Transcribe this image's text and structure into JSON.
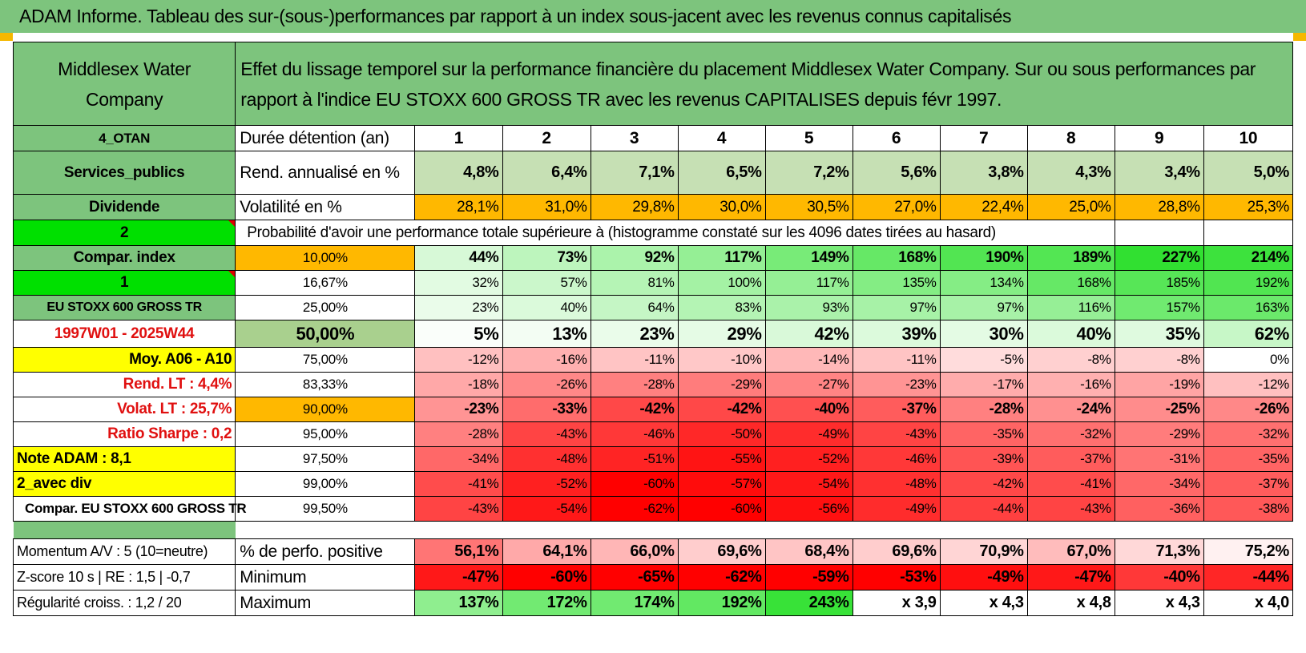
{
  "title": "ADAM Informe. Tableau des sur-(sous-)performances par rapport à un index sous-jacent avec les revenus connus capitalisés",
  "header": {
    "company": "Middlesex Water Company",
    "description": "Effet du lissage temporel sur la performance financière du placement Middlesex Water Company. Sur ou sous performances par rapport à l'indice EU STOXX 600 GROSS TR avec les revenus CAPITALISES depuis févr 1997."
  },
  "colors": {
    "green_header": "#7dc47d",
    "bright_green": "#00e000",
    "orange": "#ffb800",
    "yellow": "#ffff00",
    "red_text": "#e01010"
  },
  "years": [
    "1",
    "2",
    "3",
    "4",
    "5",
    "6",
    "7",
    "8",
    "9",
    "10"
  ],
  "rows": {
    "duration": {
      "side": "4_OTAN",
      "label": "Durée détention (an)"
    },
    "return": {
      "side": "Services_publics",
      "label": "Rend. annualisé en %",
      "values": [
        "4,8%",
        "6,4%",
        "7,1%",
        "6,5%",
        "7,2%",
        "5,6%",
        "3,8%",
        "4,3%",
        "3,4%",
        "5,0%"
      ]
    },
    "volatility": {
      "side": "Dividende",
      "label": "Volatilité en %",
      "values": [
        "28,1%",
        "31,0%",
        "29,8%",
        "30,0%",
        "30,5%",
        "27,0%",
        "22,4%",
        "25,0%",
        "28,8%",
        "25,3%"
      ]
    },
    "prob_title": {
      "side": "2",
      "label": "Probabilité d'avoir une performance totale supérieure à (histogramme constaté sur les 4096 dates tirées au hasard)"
    }
  },
  "quantiles": [
    {
      "side": "Compar. index",
      "pct": "10,00%",
      "values": [
        "44%",
        "73%",
        "92%",
        "117%",
        "149%",
        "168%",
        "190%",
        "189%",
        "227%",
        "214%"
      ]
    },
    {
      "side": "1",
      "pct": "16,67%",
      "values": [
        "32%",
        "57%",
        "81%",
        "100%",
        "117%",
        "135%",
        "134%",
        "168%",
        "185%",
        "192%"
      ]
    },
    {
      "side": "EU STOXX 600 GROSS TR",
      "pct": "25,00%",
      "values": [
        "23%",
        "40%",
        "64%",
        "83%",
        "93%",
        "97%",
        "97%",
        "116%",
        "157%",
        "163%"
      ]
    },
    {
      "side": "1997W01 - 2025W44",
      "pct": "50,00%",
      "values": [
        "5%",
        "13%",
        "23%",
        "29%",
        "42%",
        "39%",
        "30%",
        "40%",
        "35%",
        "62%"
      ]
    },
    {
      "side": "Moy. A06 - A10",
      "pct": "75,00%",
      "values": [
        "-12%",
        "-16%",
        "-11%",
        "-10%",
        "-14%",
        "-11%",
        "-5%",
        "-8%",
        "-8%",
        "0%"
      ]
    },
    {
      "side": "Rend. LT :    4,4%",
      "pct": "83,33%",
      "values": [
        "-18%",
        "-26%",
        "-28%",
        "-29%",
        "-27%",
        "-23%",
        "-17%",
        "-16%",
        "-19%",
        "-12%"
      ]
    },
    {
      "side": "Volat. LT :    25,7%",
      "pct": "90,00%",
      "values": [
        "-23%",
        "-33%",
        "-42%",
        "-42%",
        "-40%",
        "-37%",
        "-28%",
        "-24%",
        "-25%",
        "-26%"
      ]
    },
    {
      "side": "Ratio Sharpe :     0,2",
      "pct": "95,00%",
      "values": [
        "-28%",
        "-43%",
        "-46%",
        "-50%",
        "-49%",
        "-43%",
        "-35%",
        "-32%",
        "-29%",
        "-32%"
      ]
    },
    {
      "side": "Note ADAM : 8,1",
      "pct": "97,50%",
      "values": [
        "-34%",
        "-48%",
        "-51%",
        "-55%",
        "-52%",
        "-46%",
        "-39%",
        "-37%",
        "-31%",
        "-35%"
      ]
    },
    {
      "side": "2_avec div",
      "pct": "99,00%",
      "values": [
        "-41%",
        "-52%",
        "-60%",
        "-57%",
        "-54%",
        "-48%",
        "-42%",
        "-41%",
        "-34%",
        "-37%"
      ]
    },
    {
      "side": "Compar. EU STOXX 600 GROSS TR",
      "pct": "99,50%",
      "values": [
        "-43%",
        "-54%",
        "-62%",
        "-60%",
        "-56%",
        "-49%",
        "-44%",
        "-43%",
        "-36%",
        "-38%"
      ]
    }
  ],
  "stats": [
    {
      "side": "Momentum A/V : 5 (10=neutre)",
      "label": "% de perfo. positive",
      "values": [
        "56,1%",
        "64,1%",
        "66,0%",
        "69,6%",
        "68,4%",
        "69,6%",
        "70,9%",
        "67,0%",
        "71,3%",
        "75,2%"
      ]
    },
    {
      "side": "Z-score 10 s | RE : 1,5 | -0,7",
      "label": "Minimum",
      "values": [
        "-47%",
        "-60%",
        "-65%",
        "-62%",
        "-59%",
        "-53%",
        "-49%",
        "-47%",
        "-40%",
        "-44%"
      ]
    },
    {
      "side": "Régularité croiss. : 1,2 / 20",
      "label": "Maximum",
      "values": [
        "137%",
        "172%",
        "174%",
        "192%",
        "243%",
        "x 3,9",
        "x 4,3",
        "x 4,8",
        "x 4,3",
        "x 4,0"
      ]
    }
  ]
}
